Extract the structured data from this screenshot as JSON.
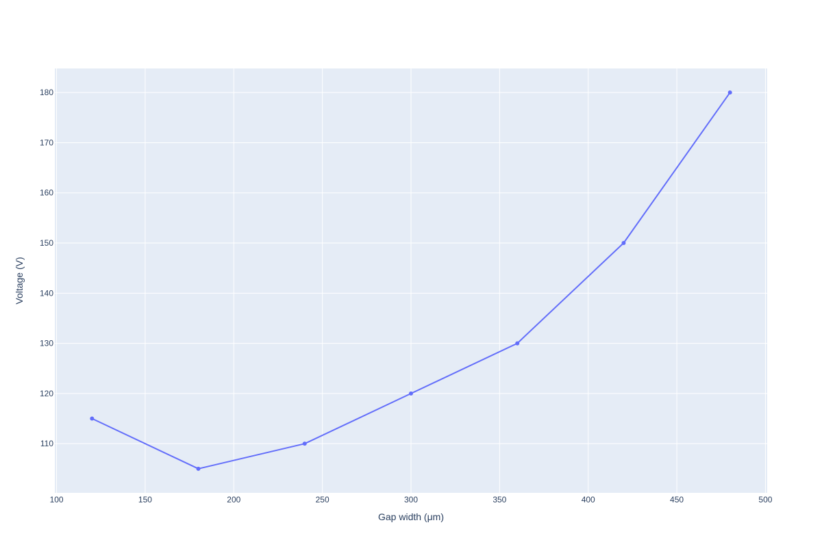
{
  "chart_data": {
    "type": "line",
    "title": "",
    "xlabel": "Gap width (μm)",
    "ylabel": "Voltage (V)",
    "x": [
      120,
      180,
      240,
      300,
      360,
      420,
      480
    ],
    "series": [
      {
        "values": [
          115,
          105,
          110,
          120,
          130,
          150,
          180
        ]
      }
    ],
    "xlim": [
      99,
      501
    ],
    "ylim": [
      100.2,
      184.8
    ],
    "xticks": [
      100,
      150,
      200,
      250,
      300,
      350,
      400,
      450,
      500
    ],
    "yticks": [
      110,
      120,
      130,
      140,
      150,
      160,
      170,
      180
    ],
    "grid": true,
    "legend": "none",
    "colors": {
      "line": "#636efa",
      "plot_background": "#e5ecf6",
      "grid": "#ffffff",
      "text": "#2a3f5f"
    }
  }
}
